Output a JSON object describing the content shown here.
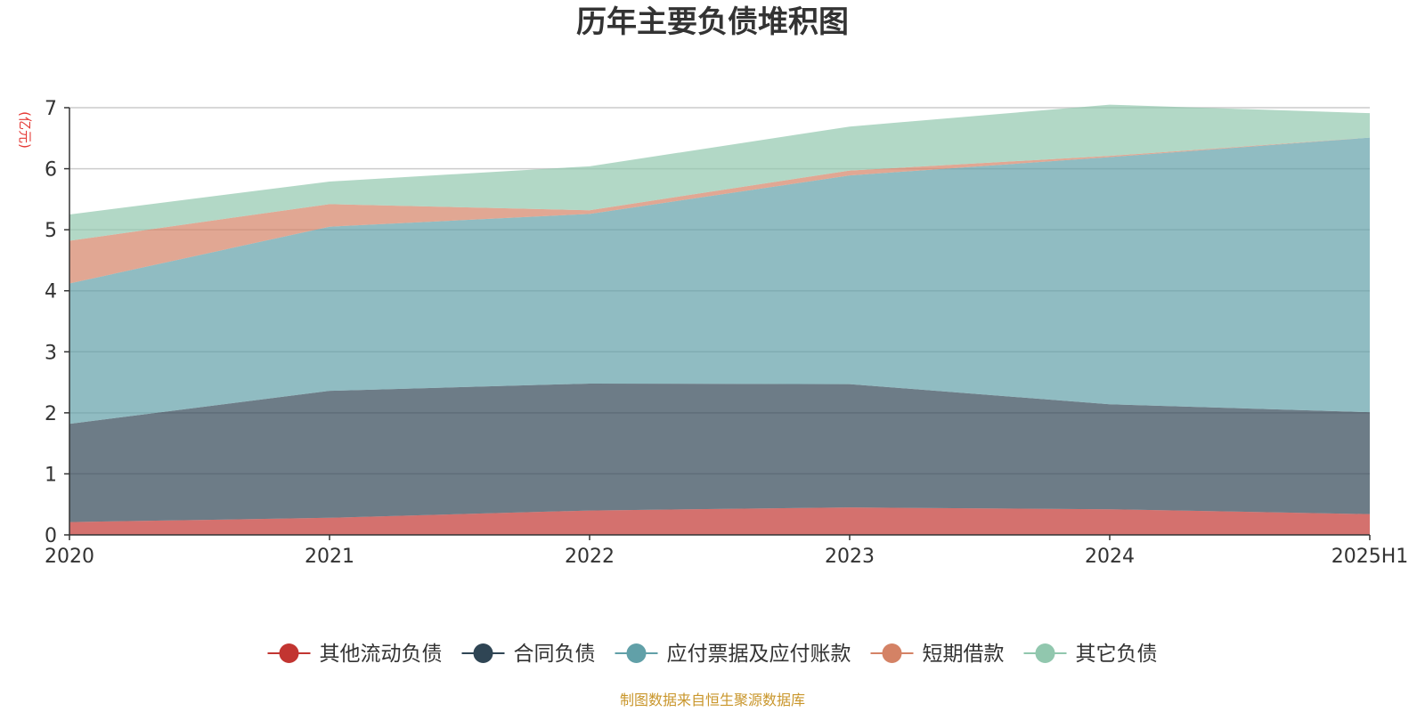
{
  "chart_data": {
    "type": "area",
    "stacked": true,
    "title": "历年主要负债堆积图",
    "unit_label": "(亿元)",
    "categories": [
      "2020",
      "2021",
      "2022",
      "2023",
      "2024",
      "2025H1"
    ],
    "ylim": [
      0,
      7
    ],
    "yticks": [
      0,
      1,
      2,
      3,
      4,
      5,
      6,
      7
    ],
    "series": [
      {
        "name": "其他流动负债",
        "color": "#c23531",
        "values": [
          0.21,
          0.28,
          0.4,
          0.45,
          0.42,
          0.34
        ]
      },
      {
        "name": "合同负债",
        "color": "#2f4554",
        "values": [
          1.61,
          2.08,
          2.08,
          2.02,
          1.72,
          1.67
        ]
      },
      {
        "name": "应付票据及应付账款",
        "color": "#61a0a8",
        "values": [
          2.3,
          2.69,
          2.78,
          3.42,
          4.05,
          4.5
        ]
      },
      {
        "name": "短期借款",
        "color": "#d48265",
        "values": [
          0.7,
          0.37,
          0.06,
          0.08,
          0.02,
          0.0
        ]
      },
      {
        "name": "其它负债",
        "color": "#91c7ae",
        "values": [
          0.43,
          0.37,
          0.72,
          0.72,
          0.84,
          0.4
        ]
      }
    ],
    "legend_position": "bottom-center",
    "grid": true
  },
  "source_text": "制图数据来自恒生聚源数据库"
}
